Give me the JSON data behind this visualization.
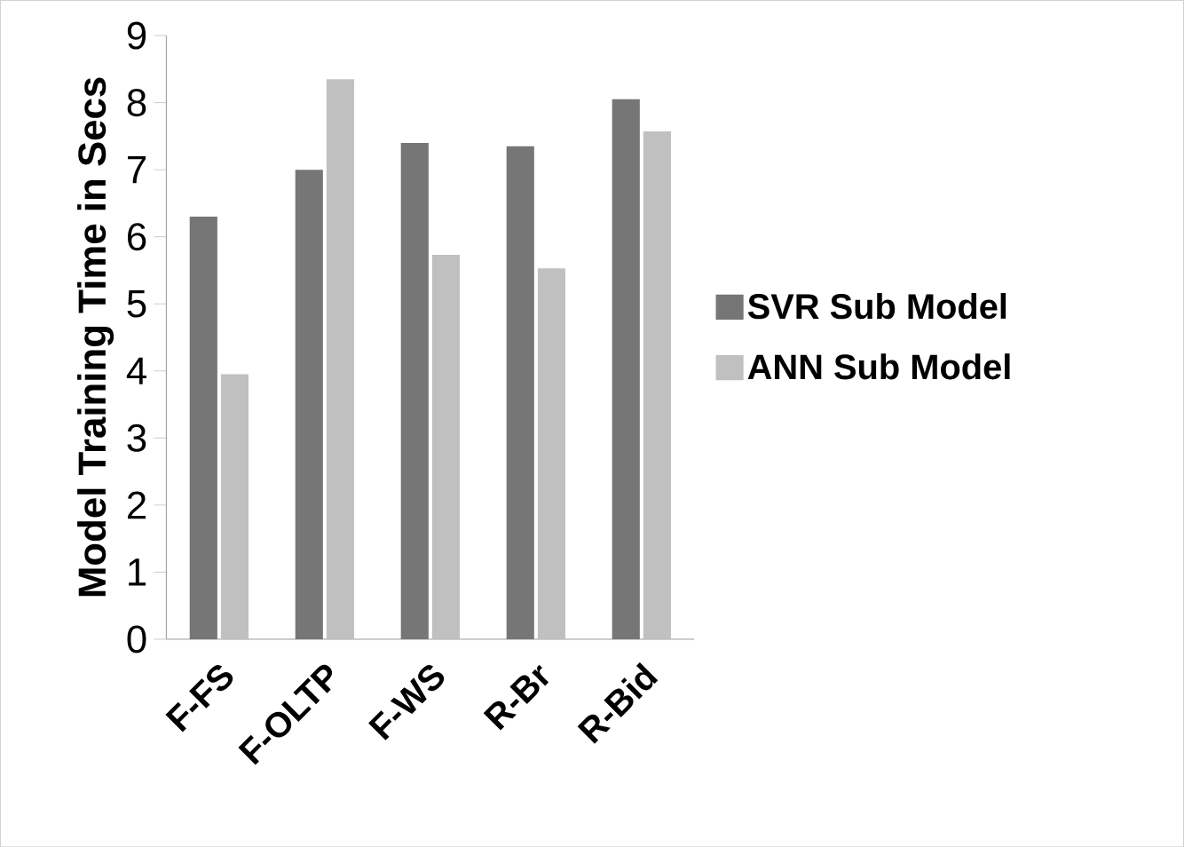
{
  "chart_data": {
    "type": "bar",
    "ylabel": "Model Training Time in Secs",
    "categories": [
      "F-FS",
      "F-OLTP",
      "F-WS",
      "R-Br",
      "R-Bid"
    ],
    "series": [
      {
        "name": "SVR Sub Model",
        "color": "#767676",
        "values": [
          6.3,
          7.0,
          7.4,
          7.35,
          8.05
        ]
      },
      {
        "name": "ANN Sub Model",
        "color": "#c0c0c0",
        "values": [
          3.95,
          8.35,
          5.73,
          5.53,
          7.57
        ]
      }
    ],
    "ylim": [
      0,
      9
    ],
    "yticks": [
      0,
      1,
      2,
      3,
      4,
      5,
      6,
      7,
      8,
      9
    ],
    "grid": false,
    "legend": "right"
  }
}
